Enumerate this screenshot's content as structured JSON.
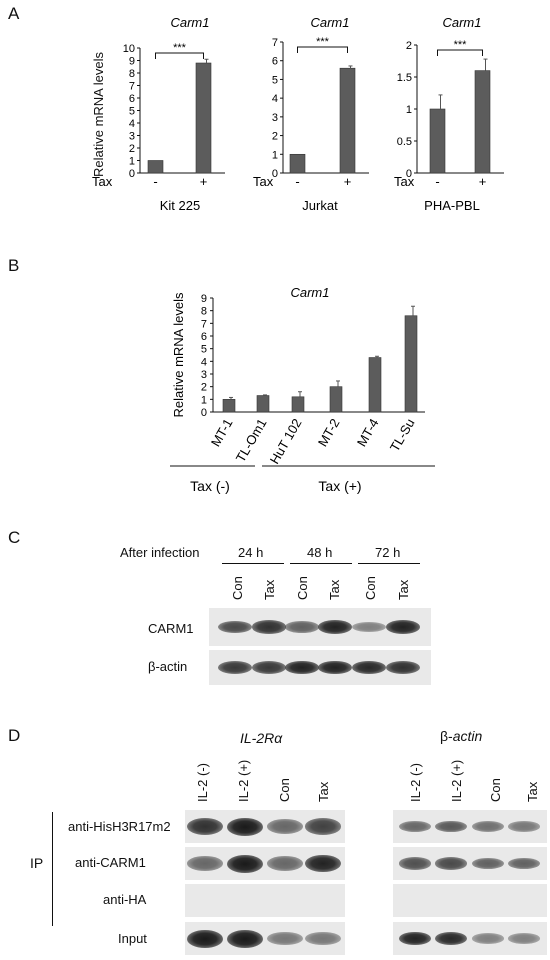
{
  "panel_a": {
    "letter": "A",
    "ylabel": "Relative mRNA levels",
    "treatment_label": "Tax",
    "tick_minus": "-",
    "tick_plus": "+",
    "significance": "***"
  },
  "chart_data": [
    {
      "type": "bar",
      "title": "Carm1",
      "xlabel": "Kit 225",
      "ylabel": "Relative mRNA levels",
      "categories": [
        "-",
        "+"
      ],
      "values": [
        1.0,
        8.8
      ],
      "errors": [
        0,
        0.3
      ],
      "ylim": [
        0,
        10
      ],
      "yticks": [
        0,
        1,
        2,
        3,
        4,
        5,
        6,
        7,
        8,
        9,
        10
      ]
    },
    {
      "type": "bar",
      "title": "Carm1",
      "xlabel": "Jurkat",
      "categories": [
        "-",
        "+"
      ],
      "values": [
        1.0,
        5.6
      ],
      "errors": [
        0,
        0.12
      ],
      "ylim": [
        0,
        7
      ],
      "yticks": [
        0,
        1,
        2,
        3,
        4,
        5,
        6,
        7
      ]
    },
    {
      "type": "bar",
      "title": "Carm1",
      "xlabel": "PHA-PBL",
      "categories": [
        "-",
        "+"
      ],
      "values": [
        1.0,
        1.6
      ],
      "errors": [
        0.22,
        0.18
      ],
      "ylim": [
        0,
        2
      ],
      "yticks": [
        0,
        0.5,
        1,
        1.5,
        2
      ],
      "ytick_labels": [
        "0",
        "0.5",
        "1",
        "1.5",
        "2"
      ]
    },
    {
      "type": "bar",
      "title": "Carm1",
      "ylabel": "Relative mRNA levels",
      "categories": [
        "MT-1",
        "TL-Om1",
        "HuT 102",
        "MT-2",
        "MT-4",
        "TL-Su"
      ],
      "values": [
        1.0,
        1.3,
        1.2,
        2.0,
        4.3,
        7.6
      ],
      "errors": [
        0.15,
        0.05,
        0.4,
        0.45,
        0.1,
        0.75
      ],
      "ylim": [
        0,
        9
      ],
      "yticks": [
        0,
        1,
        2,
        3,
        4,
        5,
        6,
        7,
        8,
        9
      ],
      "groups": [
        {
          "label": "Tax (-)",
          "members": [
            "MT-1",
            "TL-Om1"
          ]
        },
        {
          "label": "Tax (+)",
          "members": [
            "HuT 102",
            "MT-2",
            "MT-4",
            "TL-Su"
          ]
        }
      ]
    }
  ],
  "panel_b": {
    "letter": "B"
  },
  "panel_c": {
    "letter": "C",
    "after_infection": "After infection",
    "timepoints": [
      "24 h",
      "48 h",
      "72 h"
    ],
    "lanes": [
      "Con",
      "Tax",
      "Con",
      "Tax",
      "Con",
      "Tax"
    ],
    "rows": [
      {
        "label": "CARM1",
        "intensities": [
          0.7,
          0.85,
          0.55,
          0.95,
          0.35,
          0.95
        ]
      },
      {
        "label": "β-actin",
        "intensities": [
          0.8,
          0.8,
          0.95,
          0.95,
          0.9,
          0.85
        ]
      }
    ]
  },
  "panel_d": {
    "letter": "D",
    "gene1": "IL-2Rα",
    "gene2_prefix": "β-",
    "gene2_italic": "actin",
    "lanes": [
      "IL-2 (-)",
      "IL-2 (+)",
      "Con",
      "Tax"
    ],
    "ip_label": "IP",
    "rows": [
      {
        "label": "anti-HisH3R17m2",
        "il2r": [
          0.85,
          1.0,
          0.5,
          0.75
        ],
        "bactin": [
          0.5,
          0.6,
          0.45,
          0.4
        ]
      },
      {
        "label": "anti-CARM1",
        "il2r": [
          0.5,
          1.0,
          0.5,
          0.95
        ],
        "bactin": [
          0.65,
          0.7,
          0.55,
          0.55
        ]
      },
      {
        "label": "anti-HA",
        "il2r": [
          0,
          0,
          0,
          0
        ],
        "bactin": [
          0,
          0,
          0,
          0
        ]
      },
      {
        "label": "Input",
        "il2r": [
          1.0,
          1.0,
          0.4,
          0.4
        ],
        "bactin": [
          0.95,
          0.9,
          0.35,
          0.35
        ]
      }
    ]
  }
}
